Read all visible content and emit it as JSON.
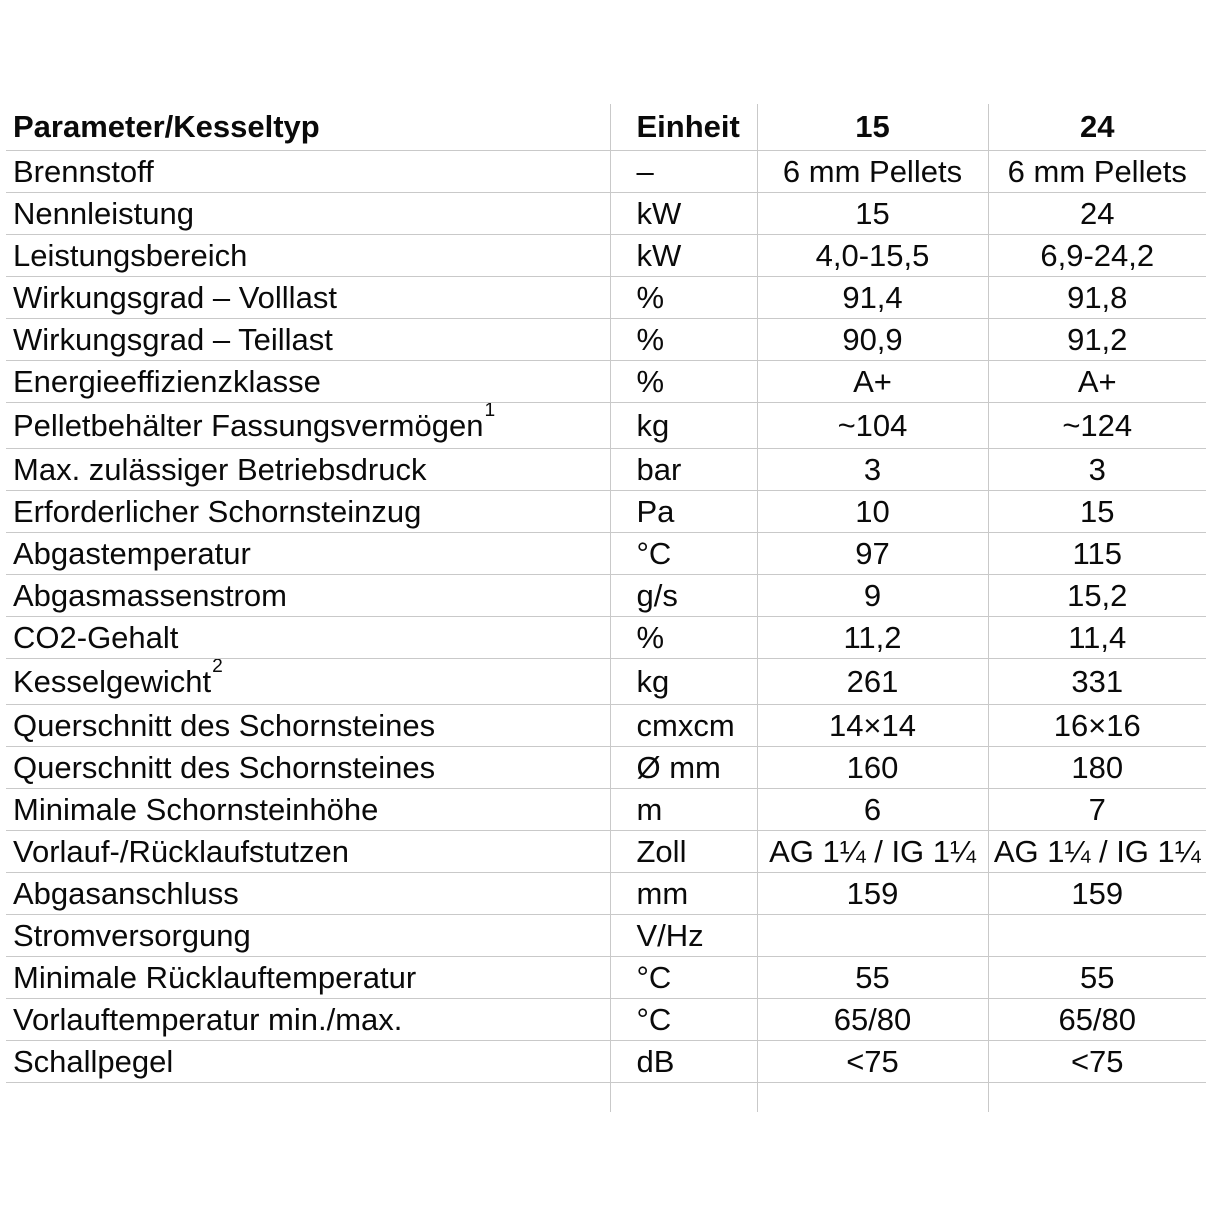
{
  "table": {
    "columns": [
      "Parameter/Kesseltyp",
      "Einheit",
      "15",
      "24"
    ],
    "rows": [
      {
        "param": "Brennstoff",
        "sup": "",
        "unit": "–",
        "v15": "6 mm Pellets",
        "v24": "6 mm Pellets"
      },
      {
        "param": "Nennleistung",
        "sup": "",
        "unit": "kW",
        "v15": "15",
        "v24": "24"
      },
      {
        "param": "Leistungsbereich",
        "sup": "",
        "unit": "kW",
        "v15": "4,0-15,5",
        "v24": "6,9-24,2"
      },
      {
        "param": "Wirkungsgrad – Volllast",
        "sup": "",
        "unit": "%",
        "v15": "91,4",
        "v24": "91,8"
      },
      {
        "param": "Wirkungsgrad – Teillast",
        "sup": "",
        "unit": "%",
        "v15": "90,9",
        "v24": "91,2"
      },
      {
        "param": "Energieeffizienzklasse",
        "sup": "",
        "unit": "%",
        "v15": "A+",
        "v24": "A+"
      },
      {
        "param": "Pelletbehälter Fassungsvermögen",
        "sup": "1",
        "unit": "kg",
        "v15": "~104",
        "v24": "~124"
      },
      {
        "param": "Max. zulässiger Betriebsdruck",
        "sup": "",
        "unit": "bar",
        "v15": "3",
        "v24": "3"
      },
      {
        "param": "Erforderlicher Schornsteinzug",
        "sup": "",
        "unit": "Pa",
        "v15": "10",
        "v24": "15"
      },
      {
        "param": "Abgastemperatur",
        "sup": "",
        "unit": "°C",
        "v15": "97",
        "v24": "115"
      },
      {
        "param": "Abgasmassenstrom",
        "sup": "",
        "unit": "g/s",
        "v15": "9",
        "v24": "15,2"
      },
      {
        "param": "CO2-Gehalt",
        "sup": "",
        "unit": "%",
        "v15": "11,2",
        "v24": "11,4"
      },
      {
        "param": "Kesselgewicht",
        "sup": "2",
        "unit": "kg",
        "v15": "261",
        "v24": "331"
      },
      {
        "param": "Querschnitt des Schornsteines",
        "sup": "",
        "unit": "cmxcm",
        "v15": "14×14",
        "v24": "16×16"
      },
      {
        "param": "Querschnitt des Schornsteines",
        "sup": "",
        "unit": "Ø mm",
        "v15": "160",
        "v24": "180"
      },
      {
        "param": "Minimale Schornsteinhöhe",
        "sup": "",
        "unit": "m",
        "v15": "6",
        "v24": "7"
      },
      {
        "param": "Vorlauf-/Rücklaufstutzen",
        "sup": "",
        "unit": "Zoll",
        "v15": "AG 1¼ / IG 1¼",
        "v24": "AG 1¼ / IG 1¼"
      },
      {
        "param": "Abgasanschluss",
        "sup": "",
        "unit": "mm",
        "v15": "159",
        "v24": "159"
      },
      {
        "param": "Stromversorgung",
        "sup": "",
        "unit": "V/Hz",
        "v15": "",
        "v24": ""
      },
      {
        "param": "Minimale Rücklauftemperatur",
        "sup": "",
        "unit": "°C",
        "v15": "55",
        "v24": "55"
      },
      {
        "param": "Vorlauftemperatur min./max.",
        "sup": "",
        "unit": "°C",
        "v15": "65/80",
        "v24": "65/80"
      },
      {
        "param": "Schallpegel",
        "sup": "",
        "unit": "dB",
        "v15": "<75",
        "v24": "<75"
      }
    ],
    "grid_color": "#c9c9c9",
    "text_color": "#0a0a0a"
  }
}
